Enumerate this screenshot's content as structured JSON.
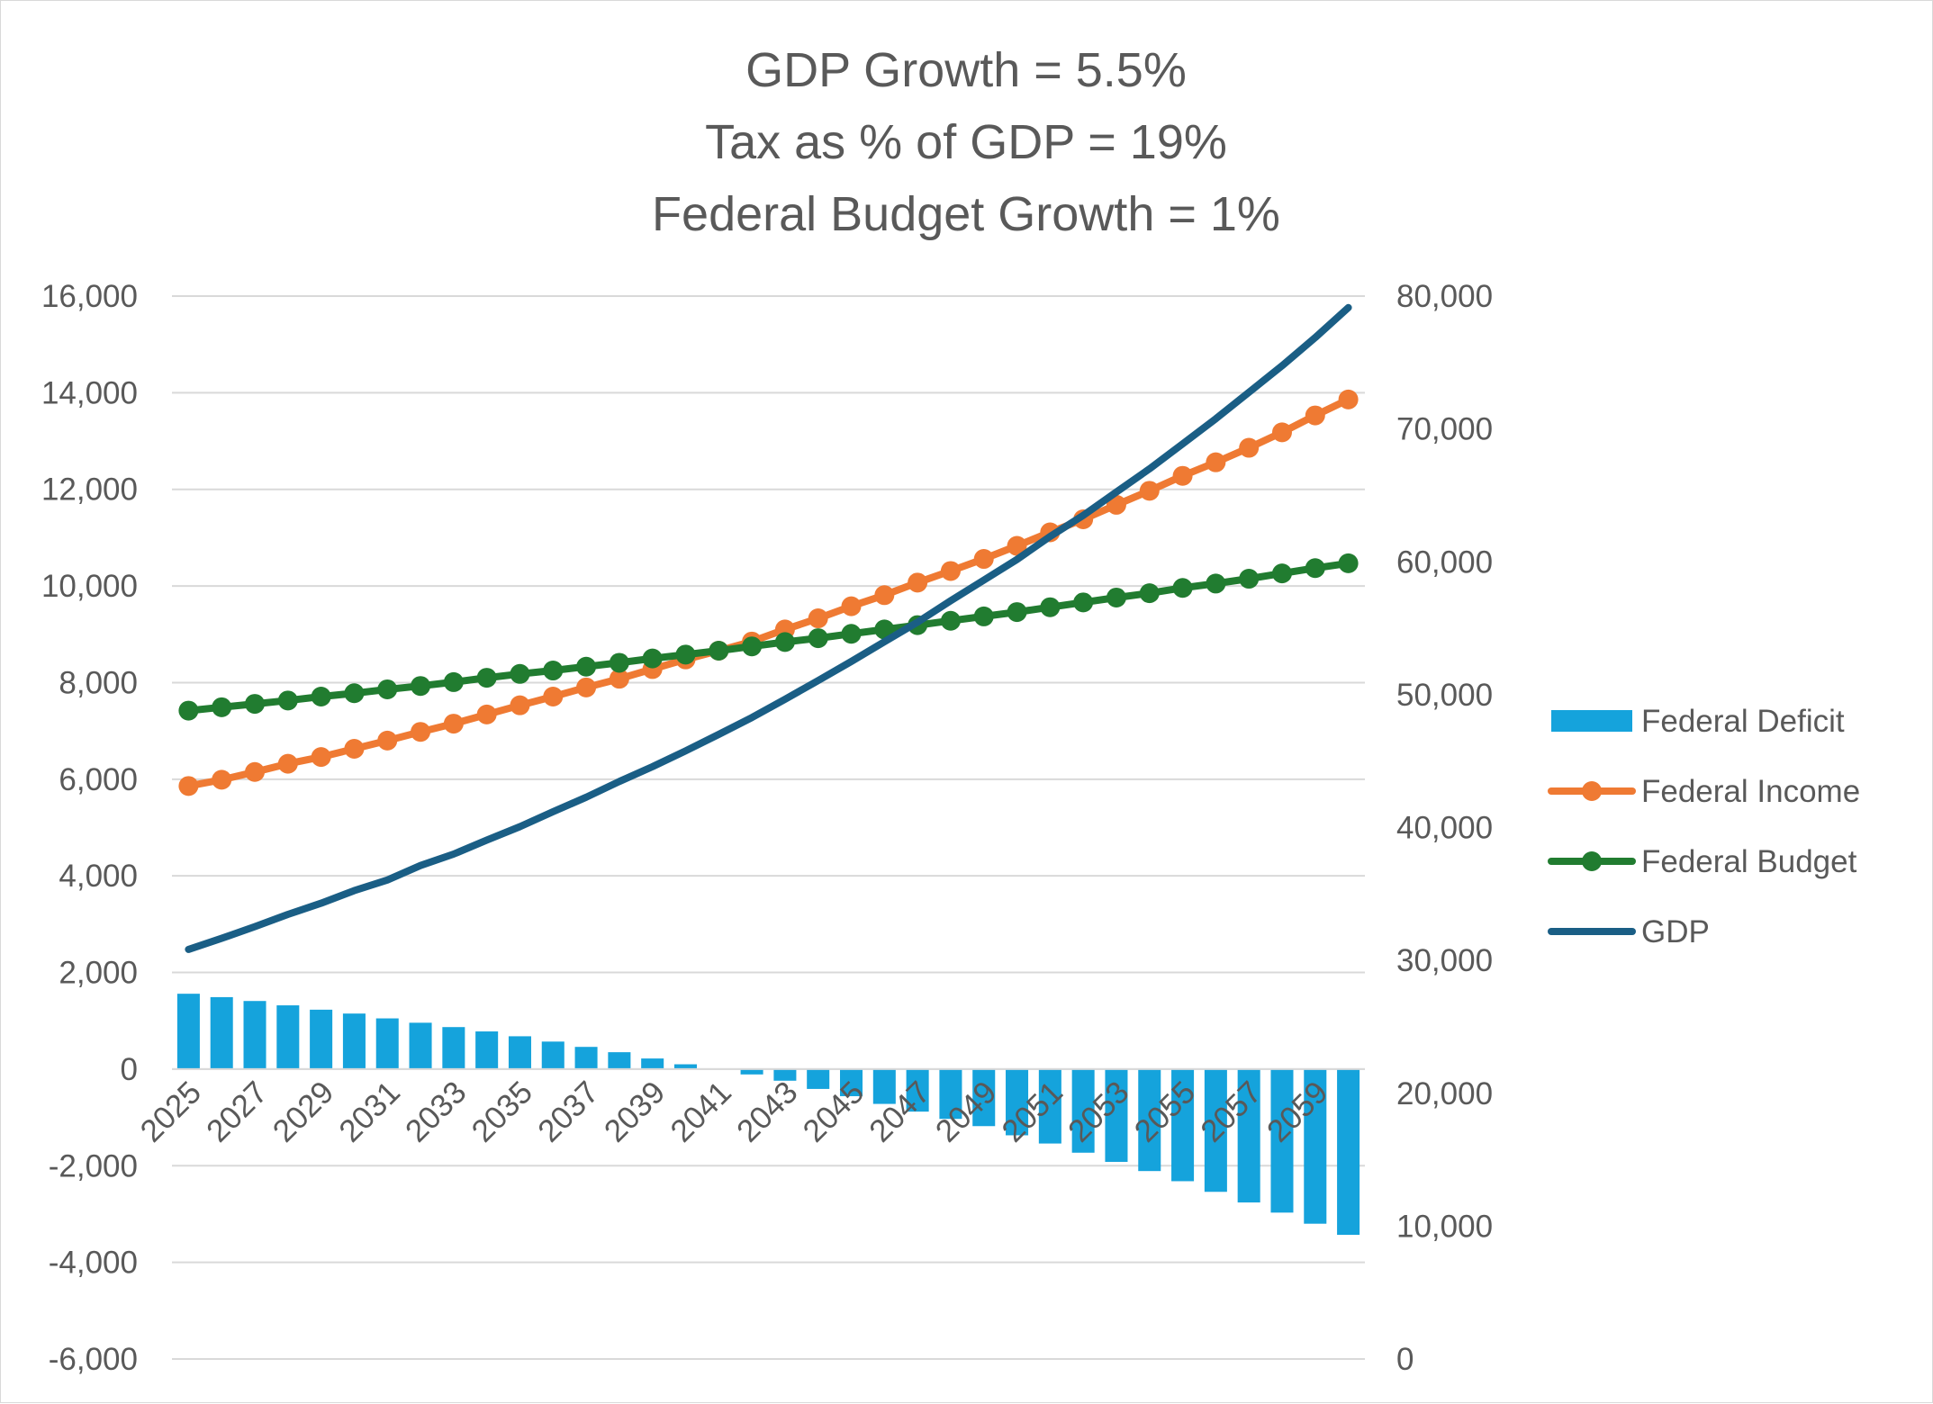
{
  "chart_data": {
    "type": "bar+line",
    "title": [
      "GDP Growth = 5.5%",
      "Tax as % of GDP = 19%",
      "Federal Budget Growth = 1%"
    ],
    "x": [
      2025,
      2026,
      2027,
      2028,
      2029,
      2030,
      2031,
      2032,
      2033,
      2034,
      2035,
      2036,
      2037,
      2038,
      2039,
      2040,
      2041,
      2042,
      2043,
      2044,
      2045,
      2046,
      2047,
      2048,
      2049,
      2050,
      2051,
      2052,
      2053,
      2054,
      2055,
      2056,
      2057,
      2058,
      2059,
      2060
    ],
    "x_tick_labels": [
      "2025",
      "2027",
      "2029",
      "2031",
      "2033",
      "2035",
      "2037",
      "2039",
      "2041",
      "2043",
      "2045",
      "2047",
      "2049",
      "2051",
      "2053",
      "2055",
      "2057",
      "2059"
    ],
    "left_axis": {
      "min": -6000,
      "max": 16000,
      "step": 2000,
      "tick_labels": [
        "16,000",
        "14,000",
        "12,000",
        "10,000",
        "8,000",
        "6,000",
        "4,000",
        "2,000",
        "0",
        "-2,000",
        "-4,000",
        "-6,000"
      ]
    },
    "right_axis": {
      "min": 0,
      "max": 80000,
      "step": 10000,
      "tick_labels": [
        "80,000",
        "70,000",
        "60,000",
        "50,000",
        "40,000",
        "30,000",
        "20,000",
        "10,000",
        "0"
      ]
    },
    "series": [
      {
        "name": "Federal Deficit",
        "type": "bar",
        "axis": "left",
        "color": "#15a3dc",
        "values": [
          1560,
          1490,
          1410,
          1320,
          1230,
          1150,
          1050,
          960,
          870,
          780,
          680,
          570,
          460,
          350,
          220,
          100,
          0,
          -110,
          -240,
          -410,
          -560,
          -720,
          -880,
          -1030,
          -1180,
          -1370,
          -1540,
          -1730,
          -1920,
          -2110,
          -2320,
          -2540,
          -2760,
          -2970,
          -3200,
          -3430
        ]
      },
      {
        "name": "Federal Income",
        "type": "line-markers",
        "axis": "left",
        "color": "#ef7a33",
        "values": [
          5860,
          5990,
          6150,
          6320,
          6460,
          6630,
          6800,
          6980,
          7150,
          7340,
          7530,
          7710,
          7900,
          8080,
          8280,
          8480,
          8660,
          8850,
          9100,
          9330,
          9580,
          9810,
          10070,
          10310,
          10560,
          10830,
          11110,
          11380,
          11680,
          11970,
          12280,
          12560,
          12860,
          13180,
          13530,
          13860
        ]
      },
      {
        "name": "Federal Budget",
        "type": "line-markers",
        "axis": "left",
        "color": "#217c30",
        "values": [
          7420,
          7490,
          7560,
          7630,
          7710,
          7780,
          7860,
          7930,
          8010,
          8100,
          8180,
          8250,
          8330,
          8410,
          8500,
          8580,
          8660,
          8750,
          8840,
          8920,
          9010,
          9100,
          9190,
          9280,
          9370,
          9460,
          9560,
          9660,
          9760,
          9850,
          9960,
          10050,
          10150,
          10260,
          10370,
          10470
        ]
      },
      {
        "name": "GDP",
        "type": "line",
        "axis": "right",
        "color": "#1a5e85",
        "values": [
          30830,
          31660,
          32540,
          33460,
          34300,
          35250,
          36050,
          37140,
          38000,
          39060,
          40070,
          41190,
          42280,
          43470,
          44580,
          45770,
          47010,
          48280,
          49650,
          51060,
          52500,
          53980,
          55460,
          57070,
          58620,
          60170,
          61910,
          63500,
          65250,
          67000,
          68880,
          70770,
          72760,
          74760,
          76880,
          79130
        ]
      }
    ],
    "legend": {
      "position": "right"
    },
    "grid": true
  }
}
